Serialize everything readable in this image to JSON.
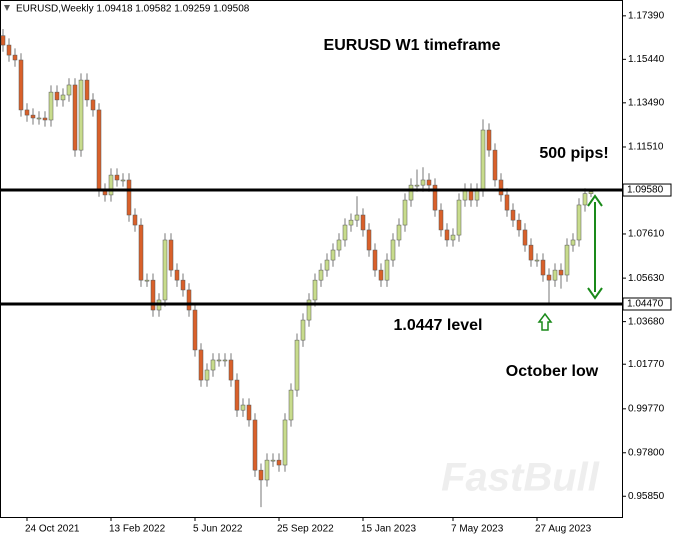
{
  "chart_data": {
    "type": "candlestick",
    "header": "EURUSD,Weekly  1.09418 1.09582 1.09259 1.09508",
    "watermark": "FastBull",
    "annotations": [
      "EURUSD W1 timeframe",
      "500 pips!",
      "1.0447 level",
      "October low"
    ],
    "categories": [
      null,
      null,
      null,
      null,
      "24 Oct 2021",
      null,
      null,
      null,
      null,
      null,
      null,
      null,
      null,
      null,
      null,
      null,
      null,
      null,
      "13 Feb 2022",
      null,
      null,
      null,
      null,
      null,
      null,
      null,
      null,
      null,
      null,
      null,
      null,
      null,
      "5 Jun 2022",
      null,
      null,
      null,
      null,
      null,
      null,
      null,
      null,
      null,
      null,
      null,
      null,
      null,
      "25 Sep 2022",
      null,
      null,
      null,
      null,
      null,
      null,
      null,
      null,
      null,
      null,
      null,
      null,
      null,
      "15 Jan 2023",
      null,
      null,
      null,
      null,
      null,
      null,
      null,
      null,
      null,
      null,
      null,
      null,
      null,
      null,
      "7 May 2023",
      null,
      null,
      null,
      null,
      null,
      null,
      null,
      null,
      null,
      null,
      null,
      null,
      null,
      "27 Aug 2023",
      null,
      null,
      null,
      null,
      null,
      null,
      null,
      null,
      null
    ],
    "open": [
      1.165,
      1.1608,
      1.1563,
      1.1541,
      1.1317,
      1.1294,
      1.1281,
      1.1281,
      1.1272,
      1.1397,
      1.1362,
      1.1384,
      1.1429,
      1.1137,
      1.1451,
      1.1362,
      1.1317,
      1.0958,
      1.0936,
      1.1025,
      1.1003,
      1.1003,
      1.0846,
      1.0801,
      1.0554,
      1.0554,
      1.042,
      1.0465,
      1.0734,
      1.0599,
      1.0554,
      1.051,
      1.042,
      1.0241,
      1.0106,
      1.0151,
      1.0196,
      1.0196,
      1.0196,
      1.0106,
      0.9971,
      0.9994,
      0.9927,
      0.9702,
      0.9658,
      0.9747,
      0.9747,
      0.9725,
      0.9927,
      1.0061,
      1.0285,
      1.0375,
      1.0465,
      1.0554,
      1.0599,
      1.0644,
      1.0689,
      1.0734,
      1.0801,
      1.0823,
      1.0846,
      1.0779,
      1.0689,
      1.0599,
      1.0554,
      1.0644,
      1.0734,
      1.0801,
      1.0913,
      1.098,
      1.098,
      1.1003,
      1.098,
      1.0868,
      1.0779,
      1.0734,
      1.0756,
      1.0913,
      1.0958,
      1.0913,
      1.0958,
      1.1227,
      1.1137,
      1.1003,
      1.0936,
      1.0868,
      1.0823,
      1.0779,
      1.0711,
      1.0644,
      1.0644,
      1.0577,
      1.0554,
      1.0599,
      1.0577,
      1.0711,
      1.0734,
      1.0891,
      1.09418
    ],
    "high": [
      1.168,
      1.1638,
      1.1593,
      1.1571,
      1.1347,
      1.1324,
      1.1311,
      1.1311,
      1.1427,
      1.1427,
      1.1414,
      1.1459,
      1.1459,
      1.1481,
      1.1481,
      1.1392,
      1.1347,
      1.0988,
      1.1055,
      1.1055,
      1.1033,
      1.1033,
      1.0876,
      1.0831,
      1.0584,
      1.0584,
      1.0495,
      1.0764,
      1.0764,
      1.0629,
      1.0584,
      1.054,
      1.045,
      1.0271,
      1.0181,
      1.0226,
      1.0226,
      1.0226,
      1.0226,
      1.0136,
      1.0024,
      1.0024,
      0.9957,
      0.9732,
      0.9777,
      0.9777,
      0.9777,
      0.9957,
      1.0091,
      1.0315,
      1.0405,
      1.0495,
      1.0584,
      1.0629,
      1.0674,
      1.0719,
      1.0764,
      1.0831,
      1.0853,
      1.093,
      1.0876,
      1.0809,
      1.0719,
      1.0629,
      1.0674,
      1.0764,
      1.0831,
      1.0943,
      1.101,
      1.105,
      1.106,
      1.1033,
      1.101,
      1.0898,
      1.0809,
      1.0786,
      1.0943,
      1.0988,
      1.0988,
      1.0988,
      1.1275,
      1.1257,
      1.1167,
      1.1033,
      1.0966,
      1.0898,
      1.0853,
      1.0809,
      1.0741,
      1.0674,
      1.0674,
      1.0607,
      1.0629,
      1.0629,
      1.0741,
      1.0764,
      1.0921,
      1.0966,
      1.09582
    ],
    "low": [
      1.1578,
      1.1533,
      1.1511,
      1.1287,
      1.1264,
      1.1251,
      1.1251,
      1.1242,
      1.1242,
      1.1332,
      1.1332,
      1.1354,
      1.1107,
      1.1107,
      1.1332,
      1.1287,
      1.0928,
      1.0906,
      1.0906,
      1.0973,
      1.0973,
      1.0816,
      1.0771,
      1.0524,
      1.0524,
      1.039,
      1.039,
      1.0435,
      1.0569,
      1.0524,
      1.048,
      1.039,
      1.0211,
      1.0076,
      1.0076,
      1.0121,
      1.0166,
      1.0166,
      1.0076,
      0.9941,
      0.9941,
      0.9897,
      0.9672,
      0.9536,
      0.9628,
      0.9717,
      0.9695,
      0.9695,
      0.9897,
      1.0031,
      1.0255,
      1.0345,
      1.0435,
      1.0524,
      1.0569,
      1.0614,
      1.0659,
      1.0704,
      1.0771,
      1.0793,
      1.0749,
      1.0659,
      1.0569,
      1.0524,
      1.0524,
      1.0614,
      1.0704,
      1.0771,
      1.0883,
      1.095,
      1.095,
      1.095,
      1.0838,
      1.0749,
      1.0704,
      1.0704,
      1.0726,
      1.0883,
      1.0883,
      1.0883,
      1.0928,
      1.1107,
      1.0973,
      1.0906,
      1.0838,
      1.0793,
      1.0749,
      1.0681,
      1.0614,
      1.0614,
      1.0547,
      1.0448,
      1.0524,
      1.0516,
      1.0547,
      1.0681,
      1.0704,
      1.0861,
      1.09259
    ],
    "close": [
      1.1608,
      1.1563,
      1.1541,
      1.1317,
      1.1294,
      1.1281,
      1.1281,
      1.1272,
      1.1397,
      1.1362,
      1.1384,
      1.1429,
      1.1137,
      1.1451,
      1.1362,
      1.1317,
      1.0958,
      1.0936,
      1.1025,
      1.1003,
      1.1003,
      1.0846,
      1.0801,
      1.0554,
      1.0554,
      1.042,
      1.0465,
      1.0734,
      1.0599,
      1.0554,
      1.051,
      1.042,
      1.0241,
      1.0106,
      1.0151,
      1.0196,
      1.0196,
      1.0196,
      1.0106,
      0.9971,
      0.9994,
      0.9927,
      0.9702,
      0.9658,
      0.9747,
      0.9747,
      0.9725,
      0.9927,
      1.0061,
      1.0285,
      1.0375,
      1.0465,
      1.0554,
      1.0599,
      1.0644,
      1.0689,
      1.0734,
      1.0801,
      1.0823,
      1.0846,
      1.0779,
      1.0689,
      1.0599,
      1.0554,
      1.0644,
      1.0734,
      1.0801,
      1.0913,
      1.098,
      1.098,
      1.1003,
      1.098,
      1.0868,
      1.0779,
      1.0734,
      1.0756,
      1.0913,
      1.0958,
      1.0913,
      1.0958,
      1.1227,
      1.1137,
      1.1003,
      1.0936,
      1.0868,
      1.0823,
      1.0779,
      1.0711,
      1.0644,
      1.0644,
      1.0577,
      1.0554,
      1.0599,
      1.0577,
      1.0711,
      1.0734,
      1.0891,
      1.0942,
      1.09508
    ],
    "up_color": "#c8dc8c",
    "down_color": "#d9602a",
    "levels": [
      {
        "value": 1.0958,
        "label": "1.09580"
      },
      {
        "value": 1.0447,
        "label": "1.04470"
      }
    ],
    "ylim": [
      0.9492,
      1.181
    ],
    "yticks": [
      {
        "value": 1.1739,
        "label": "1.17390"
      },
      {
        "value": 1.1544,
        "label": "1.15440"
      },
      {
        "value": 1.1349,
        "label": "1.13490"
      },
      {
        "value": 1.1151,
        "label": "1.11510"
      },
      {
        "value": 1.0761,
        "label": "1.07610"
      },
      {
        "value": 1.0563,
        "label": "1.05630"
      },
      {
        "value": 1.0368,
        "label": "1.03680"
      },
      {
        "value": 1.0177,
        "label": "1.01770"
      },
      {
        "value": 0.9977,
        "label": "0.99770"
      },
      {
        "value": 0.978,
        "label": "0.97800"
      },
      {
        "value": 0.9585,
        "label": "0.95850"
      }
    ]
  }
}
